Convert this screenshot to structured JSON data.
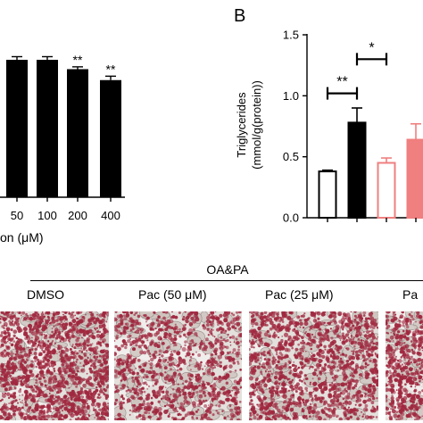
{
  "chart_data": [
    {
      "type": "bar",
      "panel": "A",
      "categories": [
        "50",
        "100",
        "200",
        "400"
      ],
      "values": [
        88,
        88,
        82,
        75
      ],
      "errors": [
        2,
        2,
        1.5,
        2.5
      ],
      "significance": [
        "",
        "",
        "**",
        "**"
      ],
      "xlabel": "on (μM)",
      "ylim": [
        0,
        120
      ],
      "bar_color": "#000000"
    },
    {
      "type": "bar",
      "panel": "B",
      "title": "B",
      "ylabel": "Triglycerides (mmol/g(protein))",
      "ylabel_lines": [
        "Triglycerides",
        "(mmol/g(protein))"
      ],
      "yticks": [
        "0.0",
        "0.5",
        "1.0",
        "1.5"
      ],
      "ylim": [
        0,
        1.5
      ],
      "values": [
        0.38,
        0.78,
        0.45,
        0.64
      ],
      "errors": [
        0.01,
        0.12,
        0.04,
        0.13
      ],
      "fill_colors": [
        "#ffffff",
        "#000000",
        "#ffffff",
        "#f07f7f"
      ],
      "edge_colors": [
        "#000000",
        "#000000",
        "#f07f7f",
        "#f07f7f"
      ],
      "brackets": [
        {
          "from": 0,
          "to": 1,
          "y": 1.02,
          "label": "**"
        },
        {
          "from": 1,
          "to": 2,
          "y": 1.3,
          "label": "*"
        }
      ]
    }
  ],
  "staining": {
    "group_label": "OA&PA",
    "columns": [
      "DMSO",
      "Pac (50 μM)",
      "Pac (25 μM)",
      "Pa"
    ],
    "stain_color": "#a0283f"
  }
}
